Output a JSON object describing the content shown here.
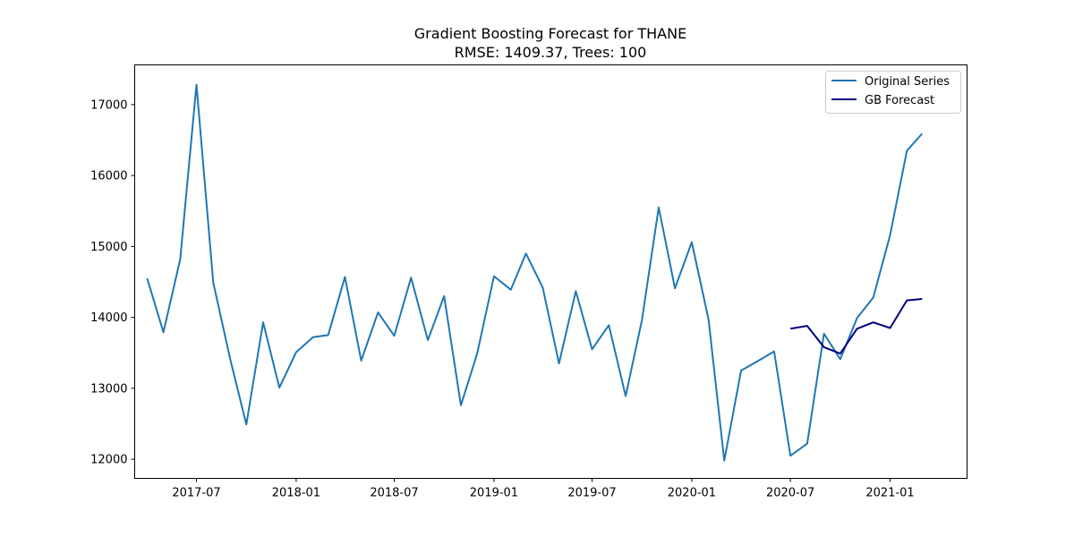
{
  "chart_data": {
    "type": "line",
    "title": "Gradient Boosting Forecast for THANE",
    "subtitle": "RMSE: 1409.37, Trees: 100",
    "xlabel": "",
    "ylabel": "",
    "x_ticks": [
      "2017-07",
      "2018-01",
      "2018-07",
      "2019-01",
      "2019-07",
      "2020-01",
      "2020-07",
      "2021-01"
    ],
    "y_ticks": [
      12000,
      13000,
      14000,
      15000,
      16000,
      17000
    ],
    "xlim": [
      "2017-03-09",
      "2021-05-23"
    ],
    "ylim": [
      11730,
      17560
    ],
    "grid": false,
    "legend_position": "top-right",
    "colors": {
      "original": "#1f77b4",
      "forecast": "#000080"
    },
    "series": [
      {
        "name": "Original Series",
        "x": [
          "2017-04-01",
          "2017-05-01",
          "2017-06-01",
          "2017-07-01",
          "2017-08-01",
          "2017-09-01",
          "2017-10-01",
          "2017-11-01",
          "2017-12-01",
          "2018-01-01",
          "2018-02-01",
          "2018-03-01",
          "2018-04-01",
          "2018-05-01",
          "2018-06-01",
          "2018-07-01",
          "2018-08-01",
          "2018-09-01",
          "2018-10-01",
          "2018-11-01",
          "2018-12-01",
          "2019-01-01",
          "2019-02-01",
          "2019-03-01",
          "2019-04-01",
          "2019-05-01",
          "2019-06-01",
          "2019-07-01",
          "2019-08-01",
          "2019-09-01",
          "2019-10-01",
          "2019-11-01",
          "2019-12-01",
          "2020-01-01",
          "2020-02-01",
          "2020-03-01",
          "2020-04-01",
          "2020-05-01",
          "2020-06-01",
          "2020-07-01",
          "2020-08-01",
          "2020-09-01",
          "2020-10-01",
          "2020-11-01",
          "2020-12-01",
          "2021-01-01",
          "2021-02-01",
          "2021-03-01"
        ],
        "values": [
          14550,
          13790,
          14820,
          17280,
          14490,
          13420,
          12490,
          13930,
          13010,
          13510,
          13720,
          13750,
          14570,
          13390,
          14070,
          13740,
          14560,
          13680,
          14300,
          12760,
          13490,
          14580,
          14390,
          14900,
          14420,
          13350,
          14370,
          13550,
          13890,
          12890,
          13960,
          15550,
          14410,
          15060,
          13970,
          11980,
          13250,
          13380,
          13520,
          12050,
          12220,
          13770,
          13410,
          13990,
          14280,
          15160,
          16350,
          16590
        ]
      },
      {
        "name": "GB Forecast",
        "x": [
          "2020-07-01",
          "2020-08-01",
          "2020-09-01",
          "2020-10-01",
          "2020-11-01",
          "2020-12-01",
          "2021-01-01",
          "2021-02-01",
          "2021-03-01"
        ],
        "values": [
          13840,
          13880,
          13580,
          13490,
          13840,
          13930,
          13850,
          14240,
          14260
        ]
      }
    ]
  }
}
